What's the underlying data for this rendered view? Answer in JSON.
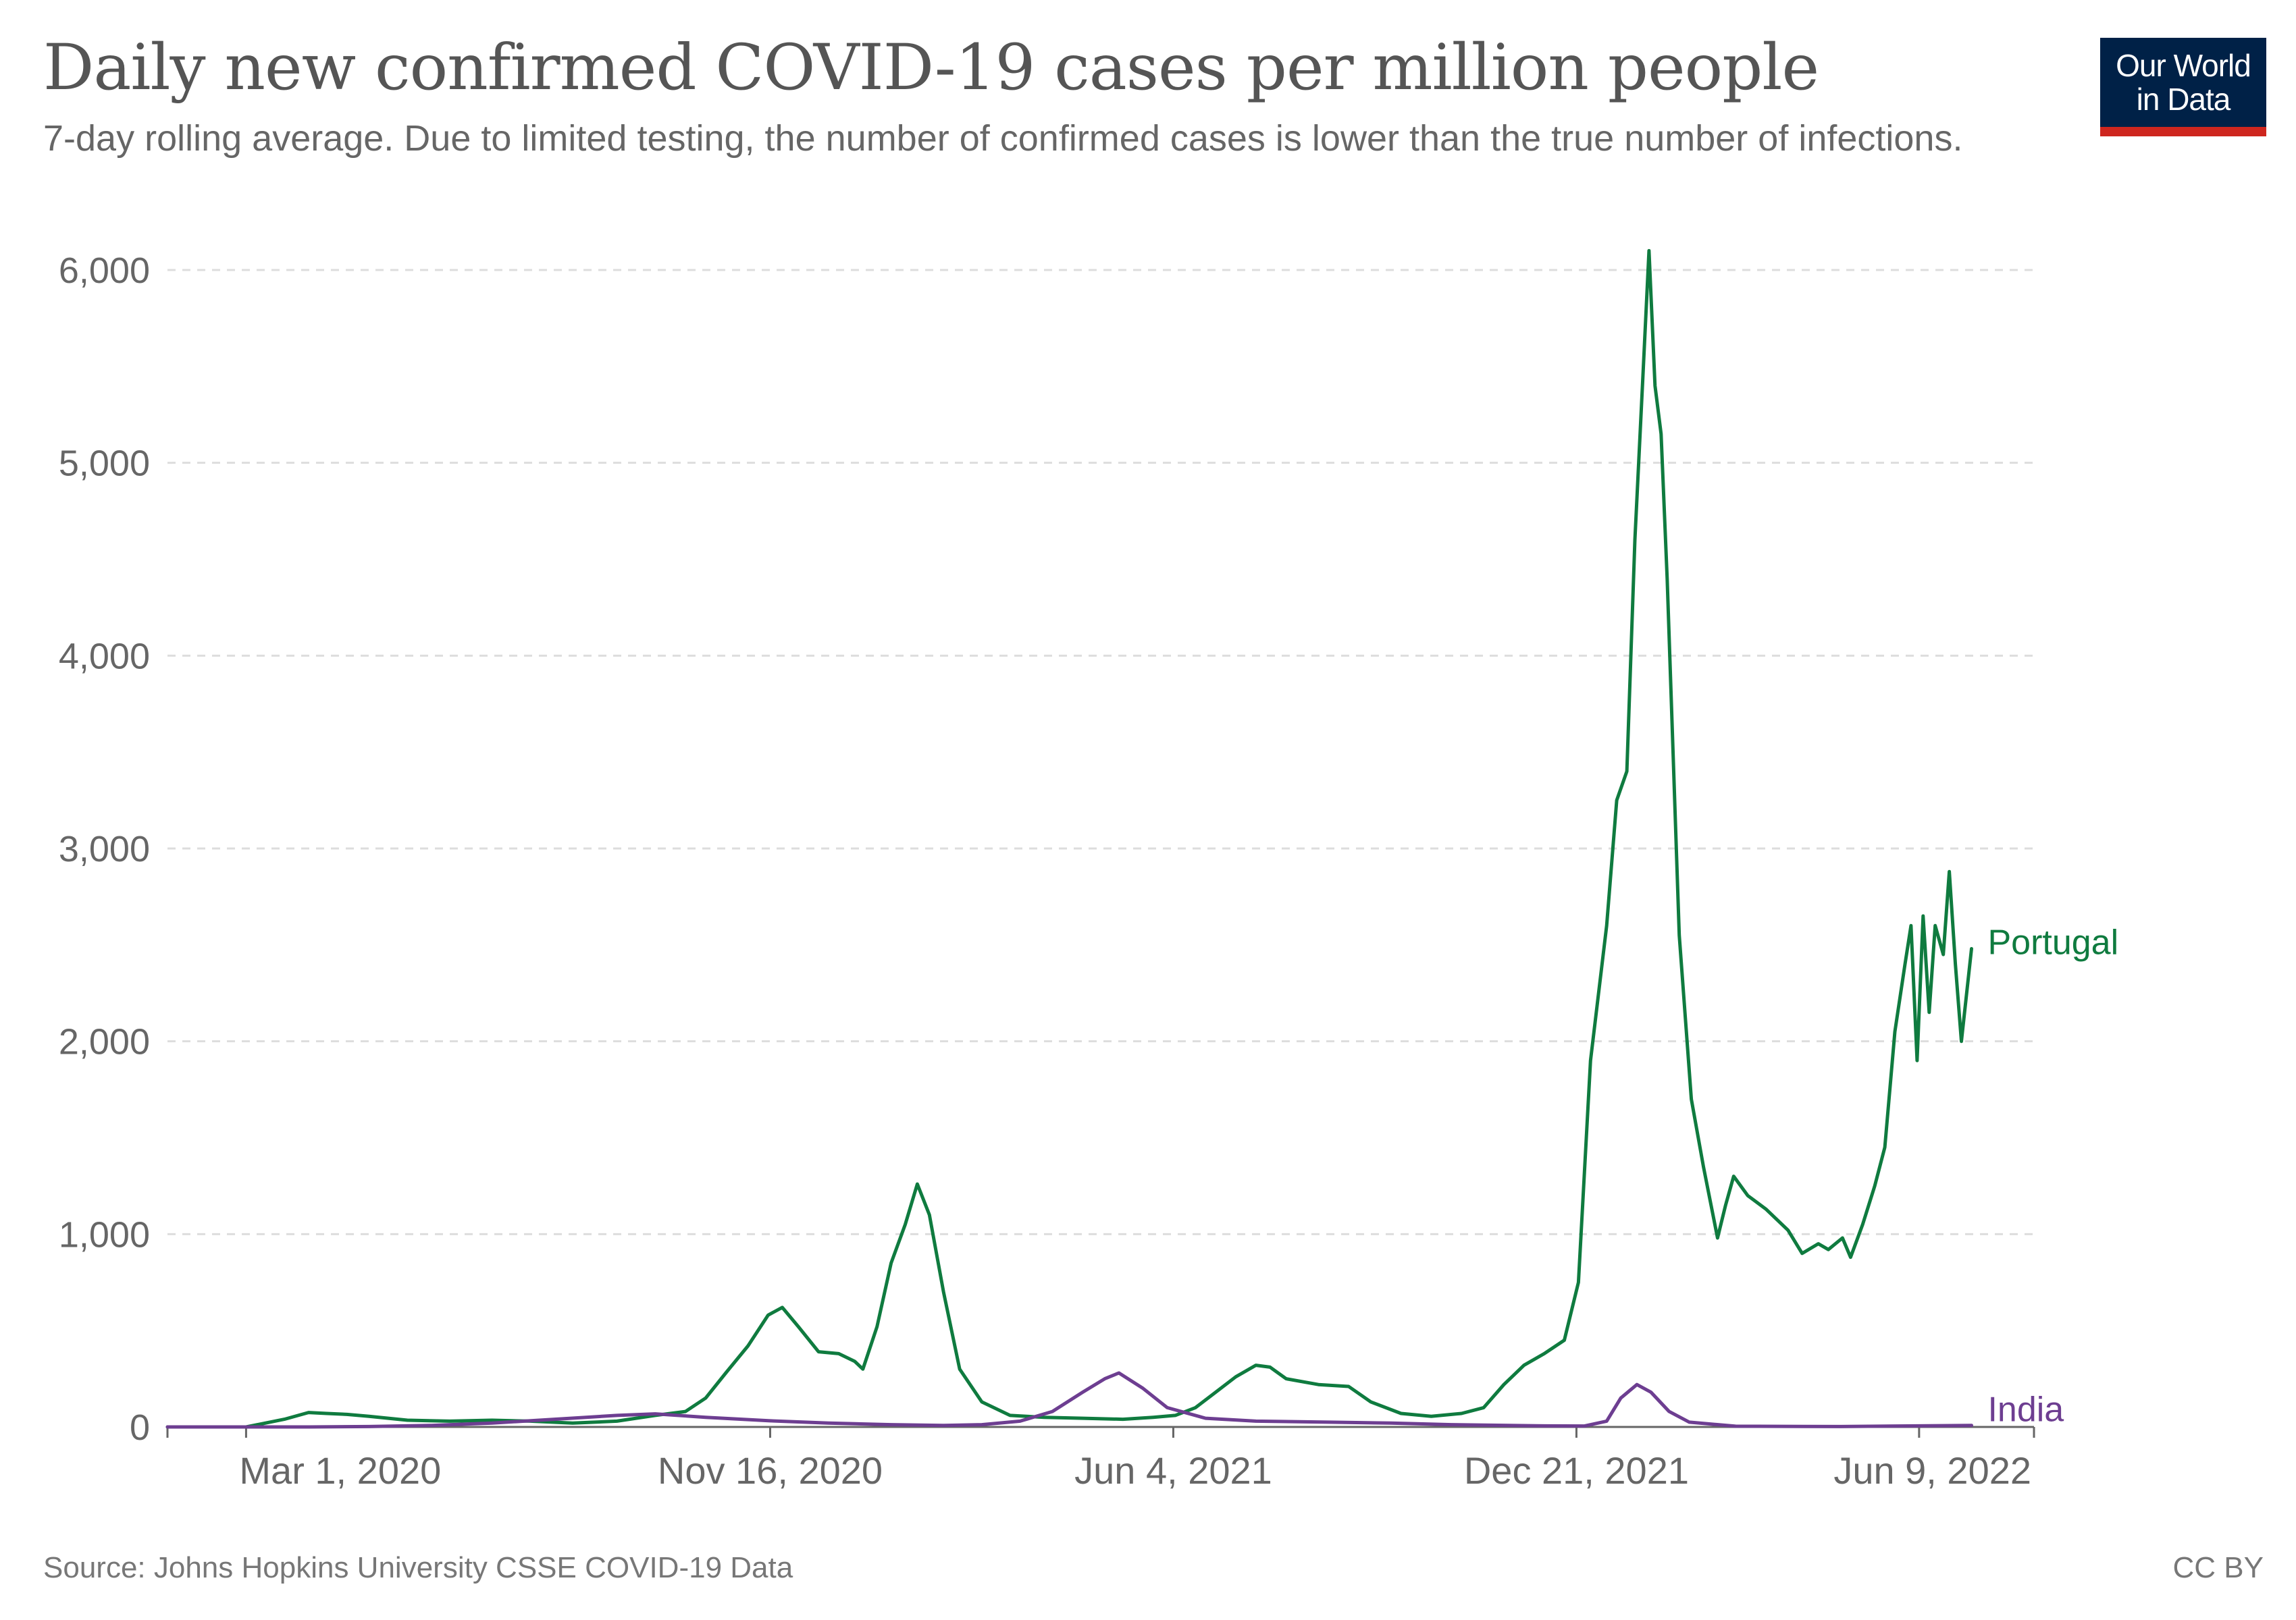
{
  "header": {
    "title": "Daily new confirmed COVID-19 cases per million people",
    "subtitle": "7-day rolling average. Due to limited testing, the number of confirmed cases is lower than the true number of infections.",
    "logo_line1": "Our World",
    "logo_line2": "in Data"
  },
  "footer": {
    "source": "Source: Johns Hopkins University CSSE COVID-19 Data",
    "license": "CC BY"
  },
  "colors": {
    "portugal": "#0f7b3f",
    "india": "#6d3e91",
    "grid": "#dddddd",
    "axis": "#666666",
    "tick_text": "#666666"
  },
  "chart_data": {
    "type": "line",
    "title": "Daily new confirmed COVID-19 cases per million people",
    "subtitle": "7-day rolling average. Due to limited testing, the number of confirmed cases is lower than the true number of infections.",
    "xlabel": "",
    "ylabel": "",
    "ylim": [
      0,
      6000
    ],
    "yticks": [
      0,
      1000,
      2000,
      3000,
      4000,
      5000,
      6000
    ],
    "ytick_labels": [
      "0",
      "1,000",
      "2,000",
      "3,000",
      "4,000",
      "5,000",
      "6,000"
    ],
    "xlim": [
      "2020-01-22",
      "2022-08-05"
    ],
    "xticks": [
      "2020-03-01",
      "2020-11-16",
      "2021-06-04",
      "2021-12-21",
      "2022-06-09"
    ],
    "xtick_labels": [
      "Mar 1, 2020",
      "Nov 16, 2020",
      "Jun 4, 2021",
      "Dec 21, 2021",
      "Jun 9, 2022"
    ],
    "grid": true,
    "legend": "line-end labels",
    "series": [
      {
        "name": "Portugal",
        "color": "#0f7b3f",
        "points": [
          [
            "2020-01-22",
            0
          ],
          [
            "2020-03-01",
            0
          ],
          [
            "2020-03-20",
            40
          ],
          [
            "2020-04-01",
            75
          ],
          [
            "2020-04-10",
            70
          ],
          [
            "2020-04-20",
            65
          ],
          [
            "2020-05-01",
            55
          ],
          [
            "2020-05-20",
            35
          ],
          [
            "2020-06-10",
            30
          ],
          [
            "2020-07-01",
            35
          ],
          [
            "2020-07-20",
            30
          ],
          [
            "2020-08-10",
            20
          ],
          [
            "2020-09-01",
            30
          ],
          [
            "2020-09-20",
            60
          ],
          [
            "2020-10-05",
            80
          ],
          [
            "2020-10-15",
            150
          ],
          [
            "2020-10-25",
            280
          ],
          [
            "2020-11-05",
            420
          ],
          [
            "2020-11-15",
            580
          ],
          [
            "2020-11-22",
            620
          ],
          [
            "2020-11-30",
            520
          ],
          [
            "2020-12-10",
            390
          ],
          [
            "2020-12-20",
            380
          ],
          [
            "2020-12-28",
            340
          ],
          [
            "2021-01-01",
            300
          ],
          [
            "2021-01-08",
            520
          ],
          [
            "2021-01-15",
            850
          ],
          [
            "2021-01-22",
            1050
          ],
          [
            "2021-01-28",
            1260
          ],
          [
            "2021-02-03",
            1100
          ],
          [
            "2021-02-10",
            700
          ],
          [
            "2021-02-18",
            300
          ],
          [
            "2021-03-01",
            130
          ],
          [
            "2021-03-15",
            60
          ],
          [
            "2021-04-01",
            50
          ],
          [
            "2021-04-20",
            45
          ],
          [
            "2021-05-10",
            40
          ],
          [
            "2021-05-25",
            50
          ],
          [
            "2021-06-05",
            60
          ],
          [
            "2021-06-15",
            100
          ],
          [
            "2021-06-25",
            180
          ],
          [
            "2021-07-05",
            260
          ],
          [
            "2021-07-15",
            320
          ],
          [
            "2021-07-22",
            310
          ],
          [
            "2021-07-30",
            250
          ],
          [
            "2021-08-15",
            220
          ],
          [
            "2021-08-30",
            210
          ],
          [
            "2021-09-10",
            130
          ],
          [
            "2021-09-25",
            70
          ],
          [
            "2021-10-10",
            55
          ],
          [
            "2021-10-25",
            70
          ],
          [
            "2021-11-05",
            100
          ],
          [
            "2021-11-15",
            220
          ],
          [
            "2021-11-25",
            320
          ],
          [
            "2021-12-05",
            380
          ],
          [
            "2021-12-15",
            450
          ],
          [
            "2021-12-22",
            750
          ],
          [
            "2021-12-28",
            1900
          ],
          [
            "2022-01-05",
            2600
          ],
          [
            "2022-01-10",
            3250
          ],
          [
            "2022-01-15",
            3400
          ],
          [
            "2022-01-19",
            4600
          ],
          [
            "2022-01-23",
            5450
          ],
          [
            "2022-01-26",
            6100
          ],
          [
            "2022-01-29",
            5400
          ],
          [
            "2022-02-01",
            5150
          ],
          [
            "2022-02-04",
            4400
          ],
          [
            "2022-02-10",
            2550
          ],
          [
            "2022-02-16",
            1700
          ],
          [
            "2022-02-22",
            1350
          ],
          [
            "2022-03-01",
            980
          ],
          [
            "2022-03-05",
            1150
          ],
          [
            "2022-03-09",
            1300
          ],
          [
            "2022-03-16",
            1200
          ],
          [
            "2022-03-25",
            1130
          ],
          [
            "2022-04-05",
            1020
          ],
          [
            "2022-04-12",
            900
          ],
          [
            "2022-04-20",
            950
          ],
          [
            "2022-04-25",
            920
          ],
          [
            "2022-05-02",
            980
          ],
          [
            "2022-05-06",
            880
          ],
          [
            "2022-05-12",
            1050
          ],
          [
            "2022-05-18",
            1250
          ],
          [
            "2022-05-23",
            1450
          ],
          [
            "2022-05-28",
            2050
          ],
          [
            "2022-06-02",
            2400
          ],
          [
            "2022-06-05",
            2600
          ],
          [
            "2022-06-08",
            1900
          ],
          [
            "2022-06-11",
            2650
          ],
          [
            "2022-06-14",
            2150
          ],
          [
            "2022-06-17",
            2600
          ],
          [
            "2022-06-21",
            2450
          ],
          [
            "2022-06-24",
            2880
          ],
          [
            "2022-06-27",
            2400
          ],
          [
            "2022-06-30",
            2000
          ],
          [
            "2022-07-05",
            2480
          ]
        ]
      },
      {
        "name": "India",
        "color": "#6d3e91",
        "points": [
          [
            "2020-01-22",
            0
          ],
          [
            "2020-04-01",
            0
          ],
          [
            "2020-05-01",
            2
          ],
          [
            "2020-06-01",
            8
          ],
          [
            "2020-07-01",
            20
          ],
          [
            "2020-08-01",
            40
          ],
          [
            "2020-09-01",
            60
          ],
          [
            "2020-09-20",
            68
          ],
          [
            "2020-10-15",
            50
          ],
          [
            "2020-11-16",
            32
          ],
          [
            "2020-12-15",
            20
          ],
          [
            "2021-01-15",
            12
          ],
          [
            "2021-02-10",
            8
          ],
          [
            "2021-03-01",
            12
          ],
          [
            "2021-03-20",
            30
          ],
          [
            "2021-04-05",
            80
          ],
          [
            "2021-04-20",
            180
          ],
          [
            "2021-05-01",
            250
          ],
          [
            "2021-05-08",
            280
          ],
          [
            "2021-05-20",
            200
          ],
          [
            "2021-06-01",
            100
          ],
          [
            "2021-06-20",
            45
          ],
          [
            "2021-07-15",
            30
          ],
          [
            "2021-08-20",
            25
          ],
          [
            "2021-09-20",
            20
          ],
          [
            "2021-10-20",
            12
          ],
          [
            "2021-12-01",
            6
          ],
          [
            "2021-12-25",
            5
          ],
          [
            "2022-01-05",
            30
          ],
          [
            "2022-01-12",
            150
          ],
          [
            "2022-01-20",
            220
          ],
          [
            "2022-01-27",
            180
          ],
          [
            "2022-02-05",
            80
          ],
          [
            "2022-02-15",
            25
          ],
          [
            "2022-03-10",
            4
          ],
          [
            "2022-05-01",
            2
          ],
          [
            "2022-07-05",
            8
          ]
        ]
      }
    ]
  }
}
